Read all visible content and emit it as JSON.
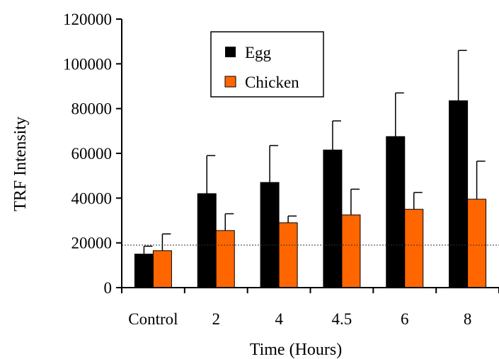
{
  "chart_data": {
    "type": "bar",
    "xlabel": "Time (Hours)",
    "ylabel": "TRF Intensity",
    "categories": [
      "Control",
      "2",
      "4",
      "4.5",
      "6",
      "8"
    ],
    "ylim": [
      0,
      120000
    ],
    "yticks": [
      0,
      20000,
      40000,
      60000,
      80000,
      100000,
      120000
    ],
    "ytick_labels": [
      "0",
      "20000",
      "40000",
      "60000",
      "80000",
      "100000",
      "120000"
    ],
    "series": [
      {
        "name": "Egg",
        "color": "#000000",
        "values": [
          15000,
          42000,
          47000,
          61500,
          67500,
          83500
        ],
        "error_upper": [
          18500,
          59000,
          63500,
          74500,
          87000,
          106000
        ]
      },
      {
        "name": "Chicken",
        "color": "#FF6600",
        "values": [
          16500,
          25500,
          29000,
          32500,
          35000,
          39500
        ],
        "error_upper": [
          24000,
          33000,
          32000,
          44000,
          42500,
          56500
        ]
      }
    ],
    "reference_line": {
      "value": 19000,
      "style": "dotted"
    },
    "legend_position": "top-center",
    "grid": false
  }
}
